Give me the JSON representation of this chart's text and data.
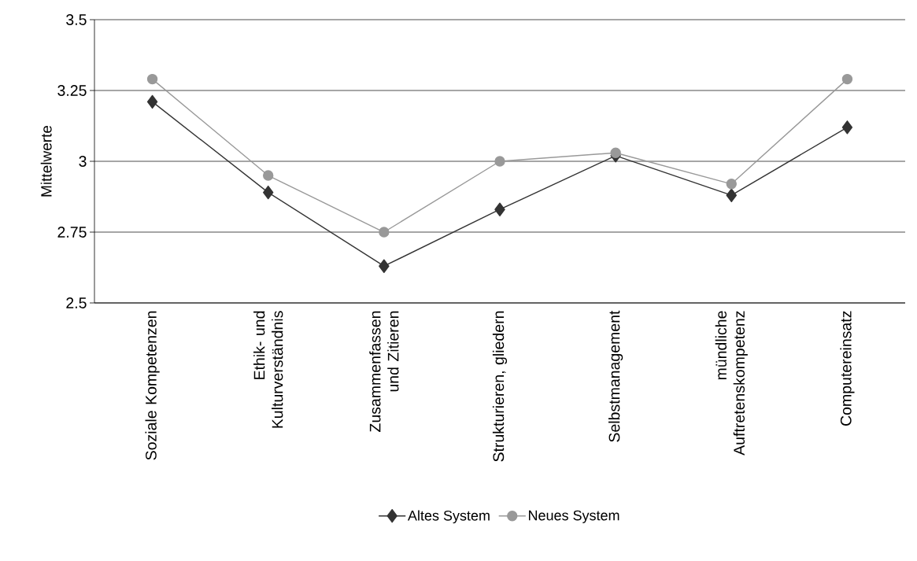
{
  "chart_data": {
    "type": "line",
    "ylabel": "Mittelwerte",
    "categories": [
      "Soziale Kompetenzen",
      "Ethik- und Kulturverständnis",
      "Zusammenfassen und Zitieren",
      "Strukturieren, gliedern",
      "Selbstmanagement",
      "mündliche Auftretenskompetenz",
      "Computereinsatz"
    ],
    "series": [
      {
        "name": "Altes System",
        "color": "#333333",
        "marker": "diamond",
        "values": [
          3.21,
          2.89,
          2.63,
          2.83,
          3.02,
          2.88,
          3.12
        ]
      },
      {
        "name": "Neues System",
        "color": "#999999",
        "marker": "circle",
        "values": [
          3.29,
          2.95,
          2.75,
          3.0,
          3.03,
          2.92,
          3.29
        ]
      }
    ],
    "ylim": [
      2.5,
      3.5
    ],
    "yticks": [
      2.5,
      2.75,
      3,
      3.25,
      3.5
    ],
    "grid": "y",
    "legend": "bottom",
    "line_style": "solid"
  }
}
